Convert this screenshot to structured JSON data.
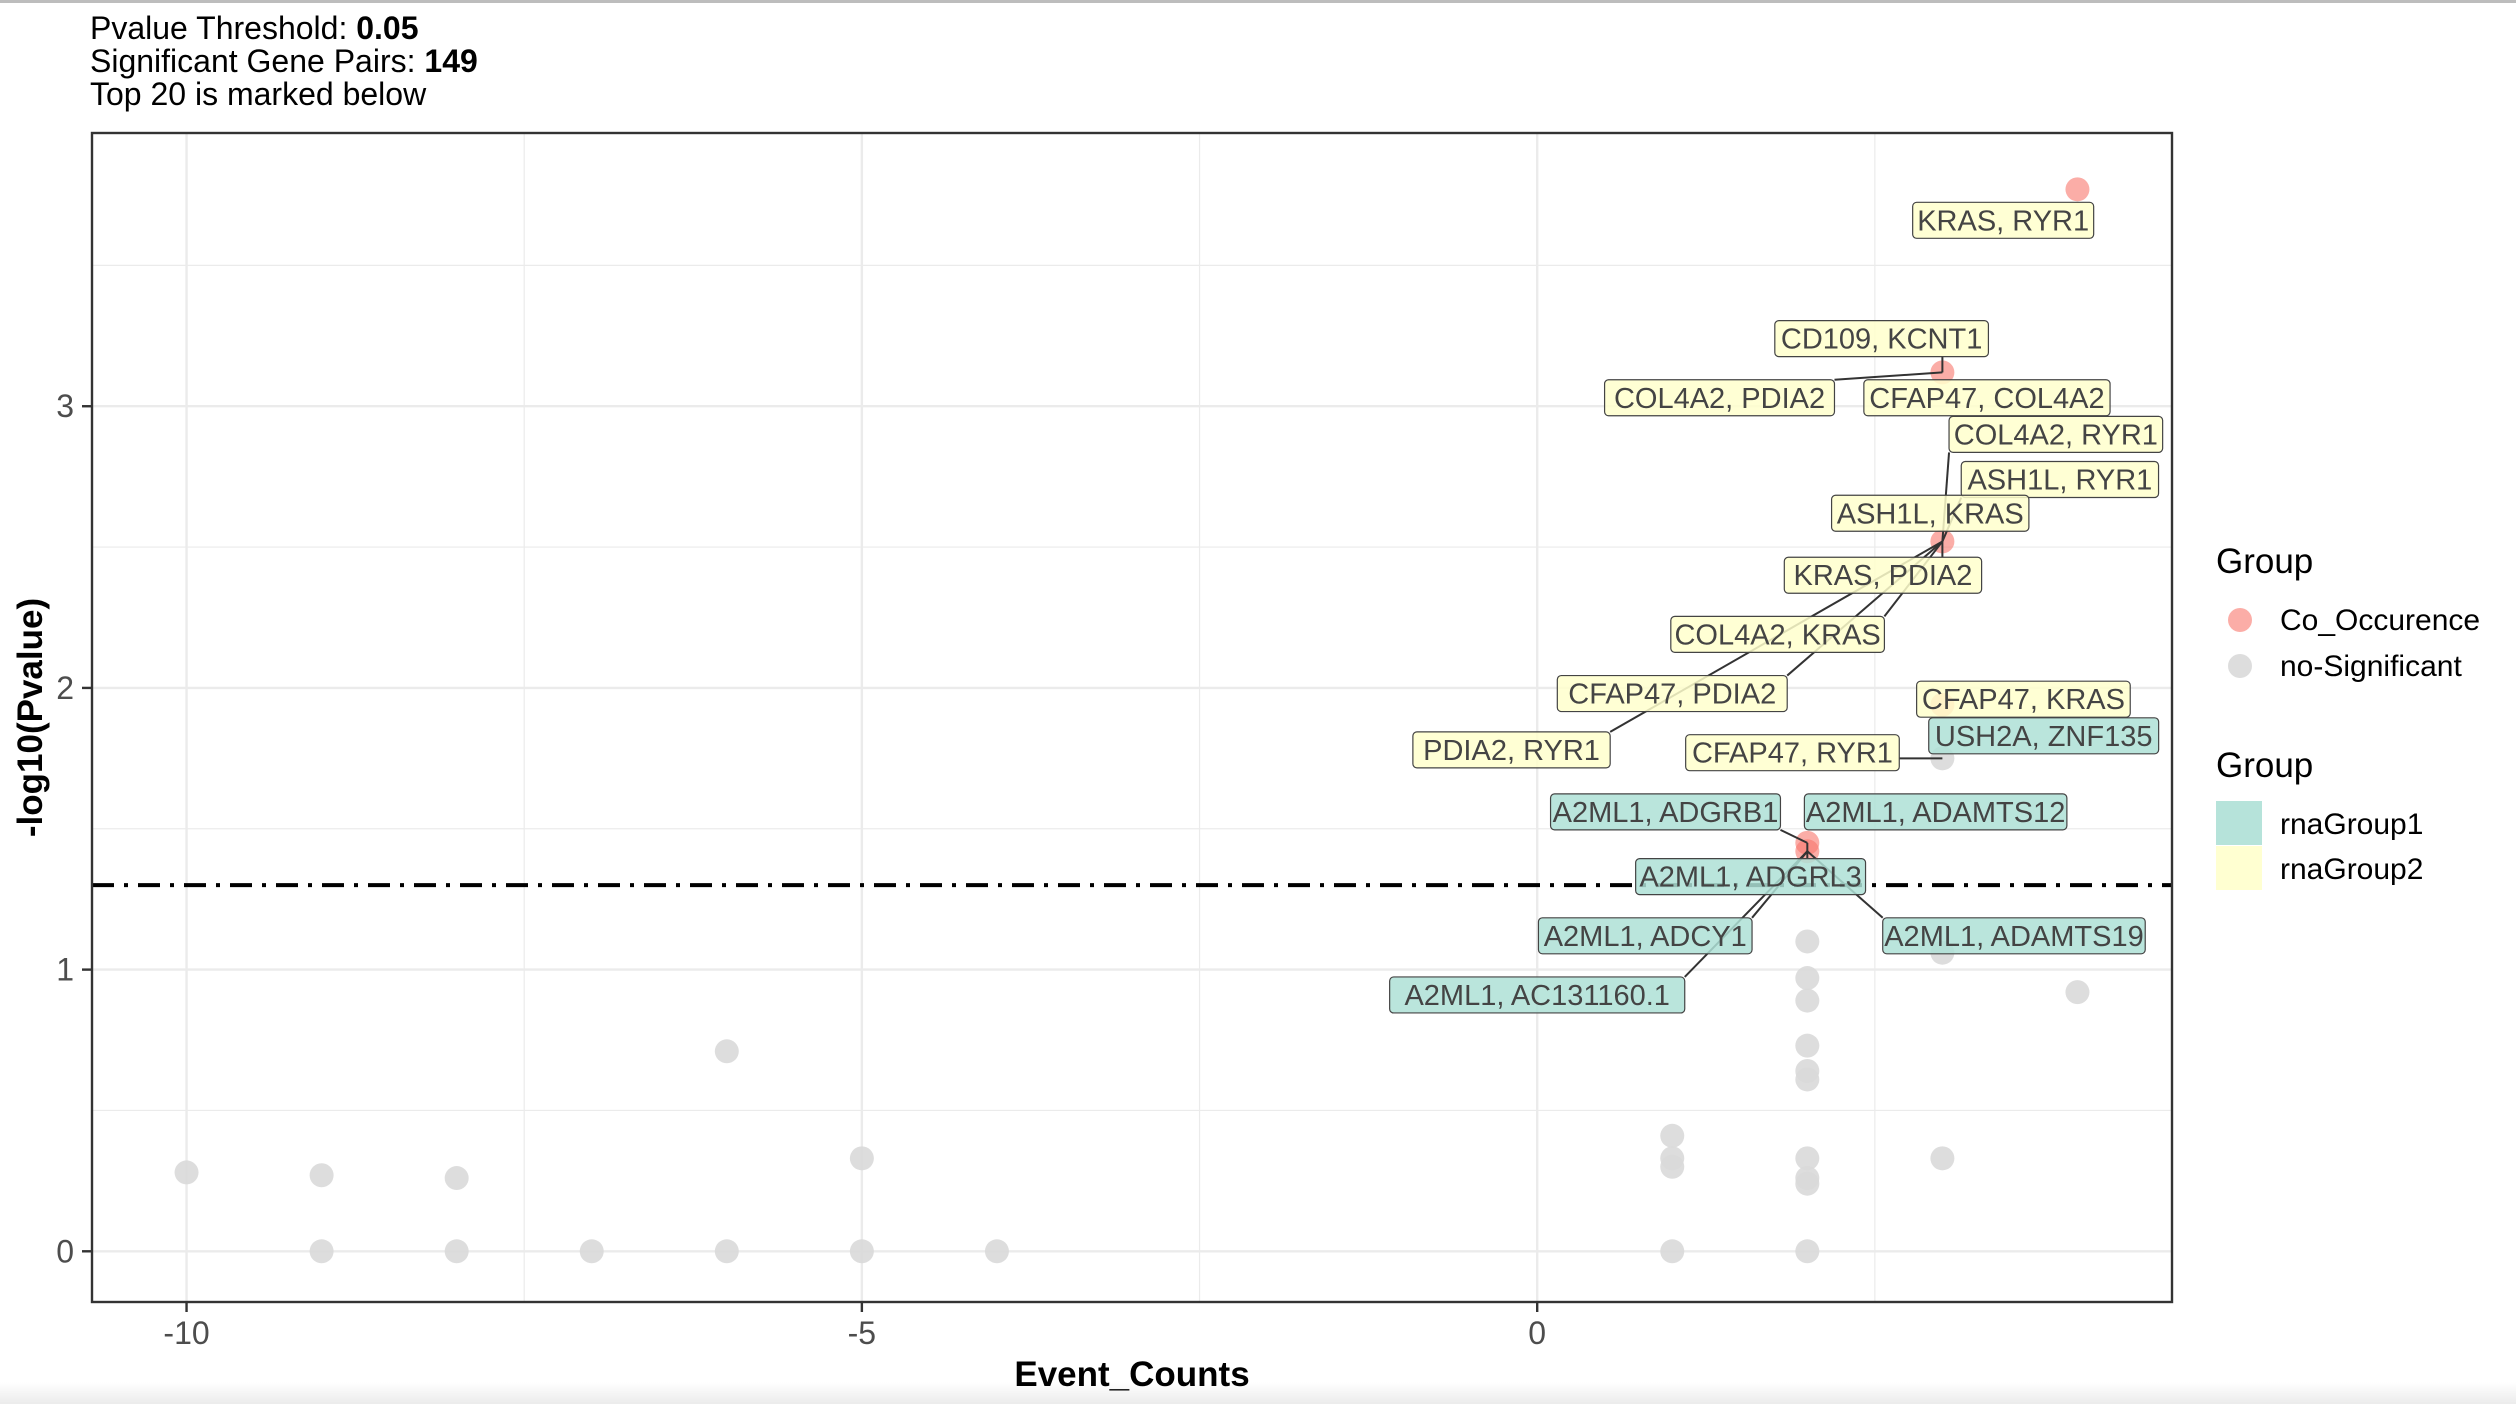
{
  "header": {
    "line1_label": "Pvalue Threshold: ",
    "line1_value": "0.05",
    "line2_label": "Significant Gene Pairs: ",
    "line2_value": "149",
    "line3": "Top 20 is marked below"
  },
  "chart_data": {
    "type": "scatter",
    "xlabel": "Event_Counts",
    "ylabel": "-log10(Pvalue)",
    "xlim": [
      -10.7,
      4.7
    ],
    "ylim": [
      -0.18,
      3.97
    ],
    "x_ticks": [
      -10,
      -5,
      0
    ],
    "y_ticks": [
      0,
      1,
      2,
      3
    ],
    "grid": true,
    "threshold": 1.3,
    "colors": {
      "Co_Occurence": "#f8766d",
      "no-Significant": "#d9d9d9",
      "rnaGroup1": "#aee0d6",
      "rnaGroup2": "#ffffcc"
    },
    "legend": {
      "position": "right",
      "title1": "Group",
      "items1": [
        "Co_Occurence",
        "no-Significant"
      ],
      "title2": "Group",
      "items2": [
        "rnaGroup1",
        "rnaGroup2"
      ]
    },
    "series": [
      {
        "name": "Co_Occurence",
        "points": [
          [
            4,
            3.77
          ],
          [
            3,
            3.12
          ],
          [
            3,
            2.52
          ],
          [
            3,
            1.94
          ],
          [
            2,
            1.45
          ],
          [
            2,
            1.42
          ]
        ]
      },
      {
        "name": "no-Significant",
        "points": [
          [
            -10,
            0.28
          ],
          [
            -9,
            0.27
          ],
          [
            -8,
            0.26
          ],
          [
            -6,
            0.71
          ],
          [
            -5,
            0.33
          ],
          [
            -9,
            0
          ],
          [
            -8,
            0
          ],
          [
            -7,
            0
          ],
          [
            -6,
            0
          ],
          [
            -5,
            0
          ],
          [
            -4,
            0
          ],
          [
            1,
            0.41
          ],
          [
            1,
            0.33
          ],
          [
            1,
            0.3
          ],
          [
            1,
            0
          ],
          [
            2,
            1.1
          ],
          [
            2,
            0.97
          ],
          [
            2,
            0.89
          ],
          [
            2,
            0.73
          ],
          [
            2,
            0.64
          ],
          [
            2,
            0.61
          ],
          [
            2,
            0.33
          ],
          [
            2,
            0.26
          ],
          [
            2,
            0.24
          ],
          [
            2,
            0
          ],
          [
            3,
            1.75
          ],
          [
            3,
            1.06
          ],
          [
            3,
            0.33
          ],
          [
            4,
            0.92
          ]
        ]
      }
    ],
    "labels": [
      {
        "text": "KRAS, RYR1",
        "group": "rnaGroup2",
        "px": 4,
        "py": 3.77,
        "lx": 3.45,
        "ly": 3.66
      },
      {
        "text": "CD109, KCNT1",
        "group": "rnaGroup2",
        "px": 3,
        "py": 3.12,
        "lx": 2.55,
        "ly": 3.24
      },
      {
        "text": "COL4A2, PDIA2",
        "group": "rnaGroup2",
        "px": 3,
        "py": 3.12,
        "lx": 1.35,
        "ly": 3.03
      },
      {
        "text": "CFAP47, COL4A2",
        "group": "rnaGroup2",
        "px": 3,
        "py": 3.12,
        "lx": 3.33,
        "ly": 3.03
      },
      {
        "text": "COL4A2, RYR1",
        "group": "rnaGroup2",
        "px": 3,
        "py": 2.52,
        "lx": 3.84,
        "ly": 2.9
      },
      {
        "text": "ASH1L, RYR1",
        "group": "rnaGroup2",
        "px": 3,
        "py": 2.52,
        "lx": 3.87,
        "ly": 2.74
      },
      {
        "text": "ASH1L, KRAS",
        "group": "rnaGroup2",
        "px": 3,
        "py": 2.52,
        "lx": 2.91,
        "ly": 2.62
      },
      {
        "text": "KRAS, PDIA2",
        "group": "rnaGroup2",
        "px": 3,
        "py": 2.52,
        "lx": 2.56,
        "ly": 2.4
      },
      {
        "text": "COL4A2, KRAS",
        "group": "rnaGroup2",
        "px": 3,
        "py": 2.52,
        "lx": 1.78,
        "ly": 2.19
      },
      {
        "text": "CFAP47, KRAS",
        "group": "rnaGroup2",
        "px": 3,
        "py": 1.94,
        "lx": 3.6,
        "ly": 1.96
      },
      {
        "text": "CFAP47, PDIA2",
        "group": "rnaGroup2",
        "px": 3,
        "py": 2.52,
        "lx": 1.0,
        "ly": 1.98
      },
      {
        "text": "PDIA2, RYR1",
        "group": "rnaGroup2",
        "px": 3,
        "py": 2.52,
        "lx": -0.19,
        "ly": 1.78
      },
      {
        "text": "CFAP47, RYR1",
        "group": "rnaGroup2",
        "px": 3,
        "py": 1.75,
        "lx": 1.89,
        "ly": 1.77
      },
      {
        "text": "USH2A, ZNF135",
        "group": "rnaGroup1",
        "px": 3,
        "py": 1.75,
        "lx": 3.75,
        "ly": 1.83
      },
      {
        "text": "A2ML1, ADGRB1",
        "group": "rnaGroup1",
        "px": 2,
        "py": 1.45,
        "lx": 0.95,
        "ly": 1.56
      },
      {
        "text": "A2ML1, ADAMTS12",
        "group": "rnaGroup1",
        "px": 2,
        "py": 1.45,
        "lx": 2.95,
        "ly": 1.56
      },
      {
        "text": "A2ML1, ADGRL3",
        "group": "rnaGroup1",
        "px": 2,
        "py": 1.45,
        "lx": 1.58,
        "ly": 1.33
      },
      {
        "text": "A2ML1, ADCY1",
        "group": "rnaGroup1",
        "px": 2,
        "py": 1.42,
        "lx": 0.8,
        "ly": 1.12
      },
      {
        "text": "A2ML1, ADAMTS19",
        "group": "rnaGroup1",
        "px": 2,
        "py": 1.42,
        "lx": 3.53,
        "ly": 1.12
      },
      {
        "text": "A2ML1, AC131160.1",
        "group": "rnaGroup1",
        "px": 2,
        "py": 1.42,
        "lx": 0.0,
        "ly": 0.91
      }
    ]
  }
}
